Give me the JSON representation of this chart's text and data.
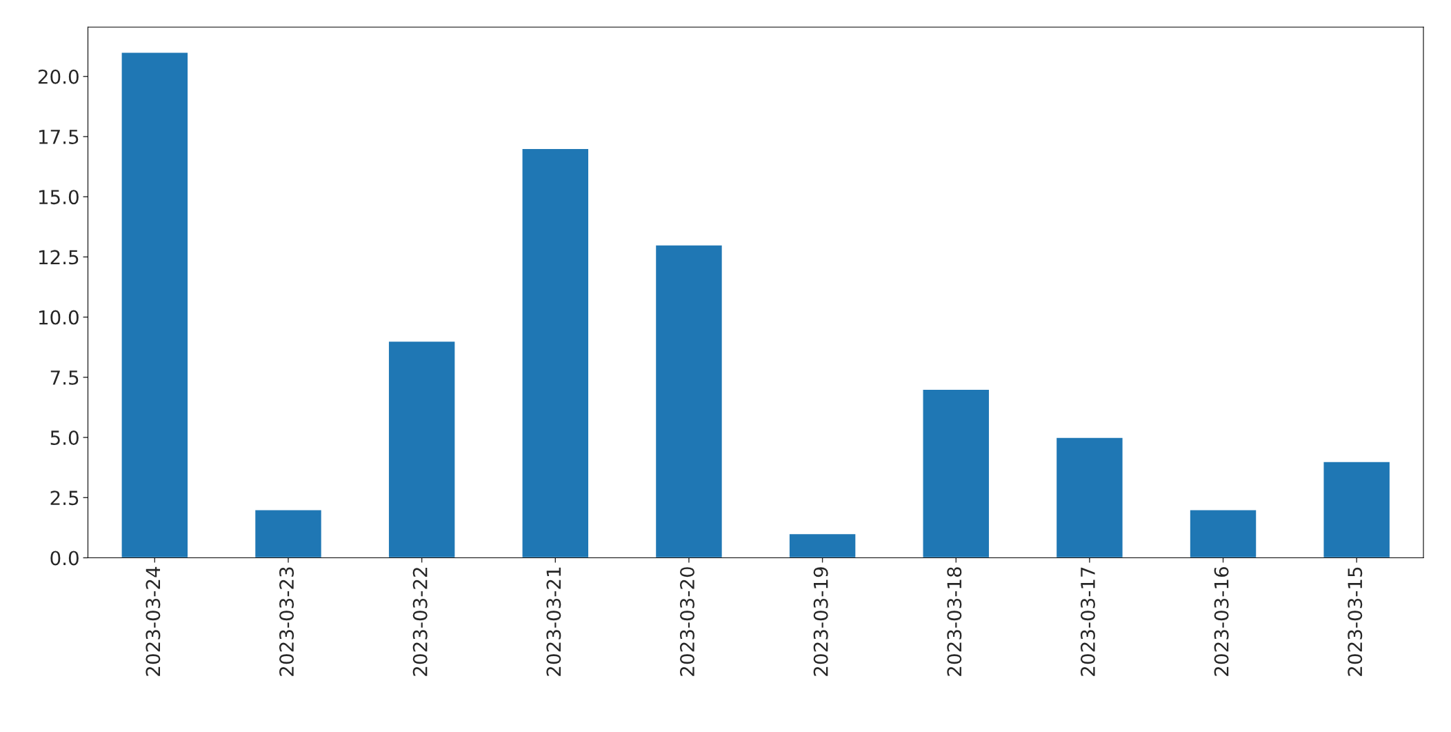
{
  "chart_data": {
    "type": "bar",
    "categories": [
      "2023-03-24",
      "2023-03-23",
      "2023-03-22",
      "2023-03-21",
      "2023-03-20",
      "2023-03-19",
      "2023-03-18",
      "2023-03-17",
      "2023-03-16",
      "2023-03-15"
    ],
    "values": [
      21,
      2,
      9,
      17,
      13,
      1,
      7,
      5,
      2,
      4
    ],
    "color": "#1f77b4",
    "ylim": [
      0,
      22.05
    ],
    "yticks": [
      {
        "value": 0,
        "label": "0.0"
      },
      {
        "value": 2.5,
        "label": "2.5"
      },
      {
        "value": 5,
        "label": "5.0"
      },
      {
        "value": 7.5,
        "label": "7.5"
      },
      {
        "value": 10,
        "label": "10.0"
      },
      {
        "value": 12.5,
        "label": "12.5"
      },
      {
        "value": 15,
        "label": "15.0"
      },
      {
        "value": 17.5,
        "label": "17.5"
      },
      {
        "value": 20,
        "label": "20.0"
      }
    ],
    "grid": false
  }
}
